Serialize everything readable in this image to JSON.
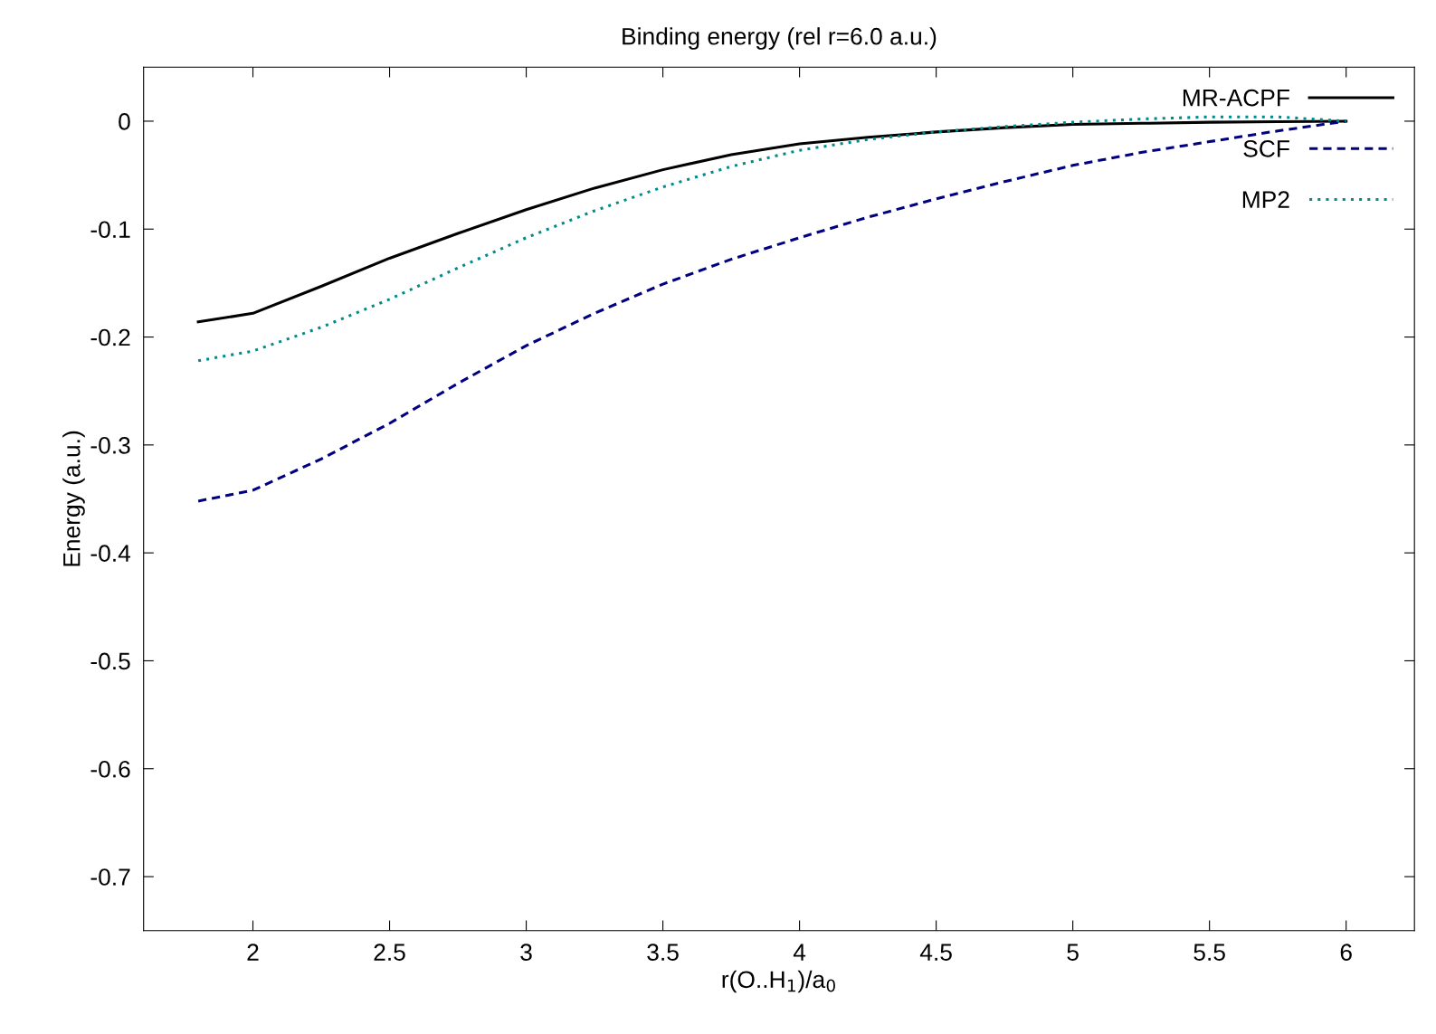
{
  "chart_data": {
    "type": "line",
    "title": "Binding energy (rel r=6.0 a.u.)",
    "xlabel": "r(O..H$_{1}$)/a$_{0}$",
    "ylabel": "Energy (a.u.)",
    "xlim": [
      1.6,
      6.25
    ],
    "xticks": [
      2,
      2.5,
      3,
      3.5,
      4,
      4.5,
      5,
      5.5,
      6
    ],
    "ylim": [
      -0.75,
      0.05
    ],
    "yticks": [
      0,
      -0.1,
      -0.2,
      -0.3,
      -0.4,
      -0.5,
      -0.6,
      -0.7
    ],
    "grid": false,
    "legend": "top right",
    "x": [
      1.8,
      2.0,
      2.25,
      2.5,
      2.75,
      3.0,
      3.25,
      3.5,
      3.75,
      4.0,
      4.25,
      4.5,
      4.75,
      5.0,
      5.25,
      5.5,
      5.75,
      6.0
    ],
    "series": [
      {
        "name": "MR-ACPF",
        "color": "#000000",
        "line_style": "solid",
        "values": [
          -0.186,
          -0.178,
          -0.153,
          -0.127,
          -0.104,
          -0.082,
          -0.062,
          -0.045,
          -0.031,
          -0.021,
          -0.015,
          -0.01,
          -0.006,
          -0.003,
          -0.002,
          -0.001,
          -0.0005,
          0
        ]
      },
      {
        "name": "SCF",
        "color": "#000080",
        "line_style": "dashed",
        "values": [
          -0.352,
          -0.342,
          -0.313,
          -0.28,
          -0.243,
          -0.208,
          -0.178,
          -0.151,
          -0.128,
          -0.108,
          -0.089,
          -0.072,
          -0.056,
          -0.041,
          -0.029,
          -0.019,
          -0.009,
          0
        ]
      },
      {
        "name": "MP2",
        "color": "#008b8b",
        "line_style": "dotted",
        "values": [
          -0.222,
          -0.213,
          -0.191,
          -0.165,
          -0.136,
          -0.108,
          -0.083,
          -0.061,
          -0.042,
          -0.027,
          -0.017,
          -0.01,
          -0.005,
          -0.001,
          0.002,
          0.004,
          0.004,
          0
        ]
      }
    ]
  }
}
